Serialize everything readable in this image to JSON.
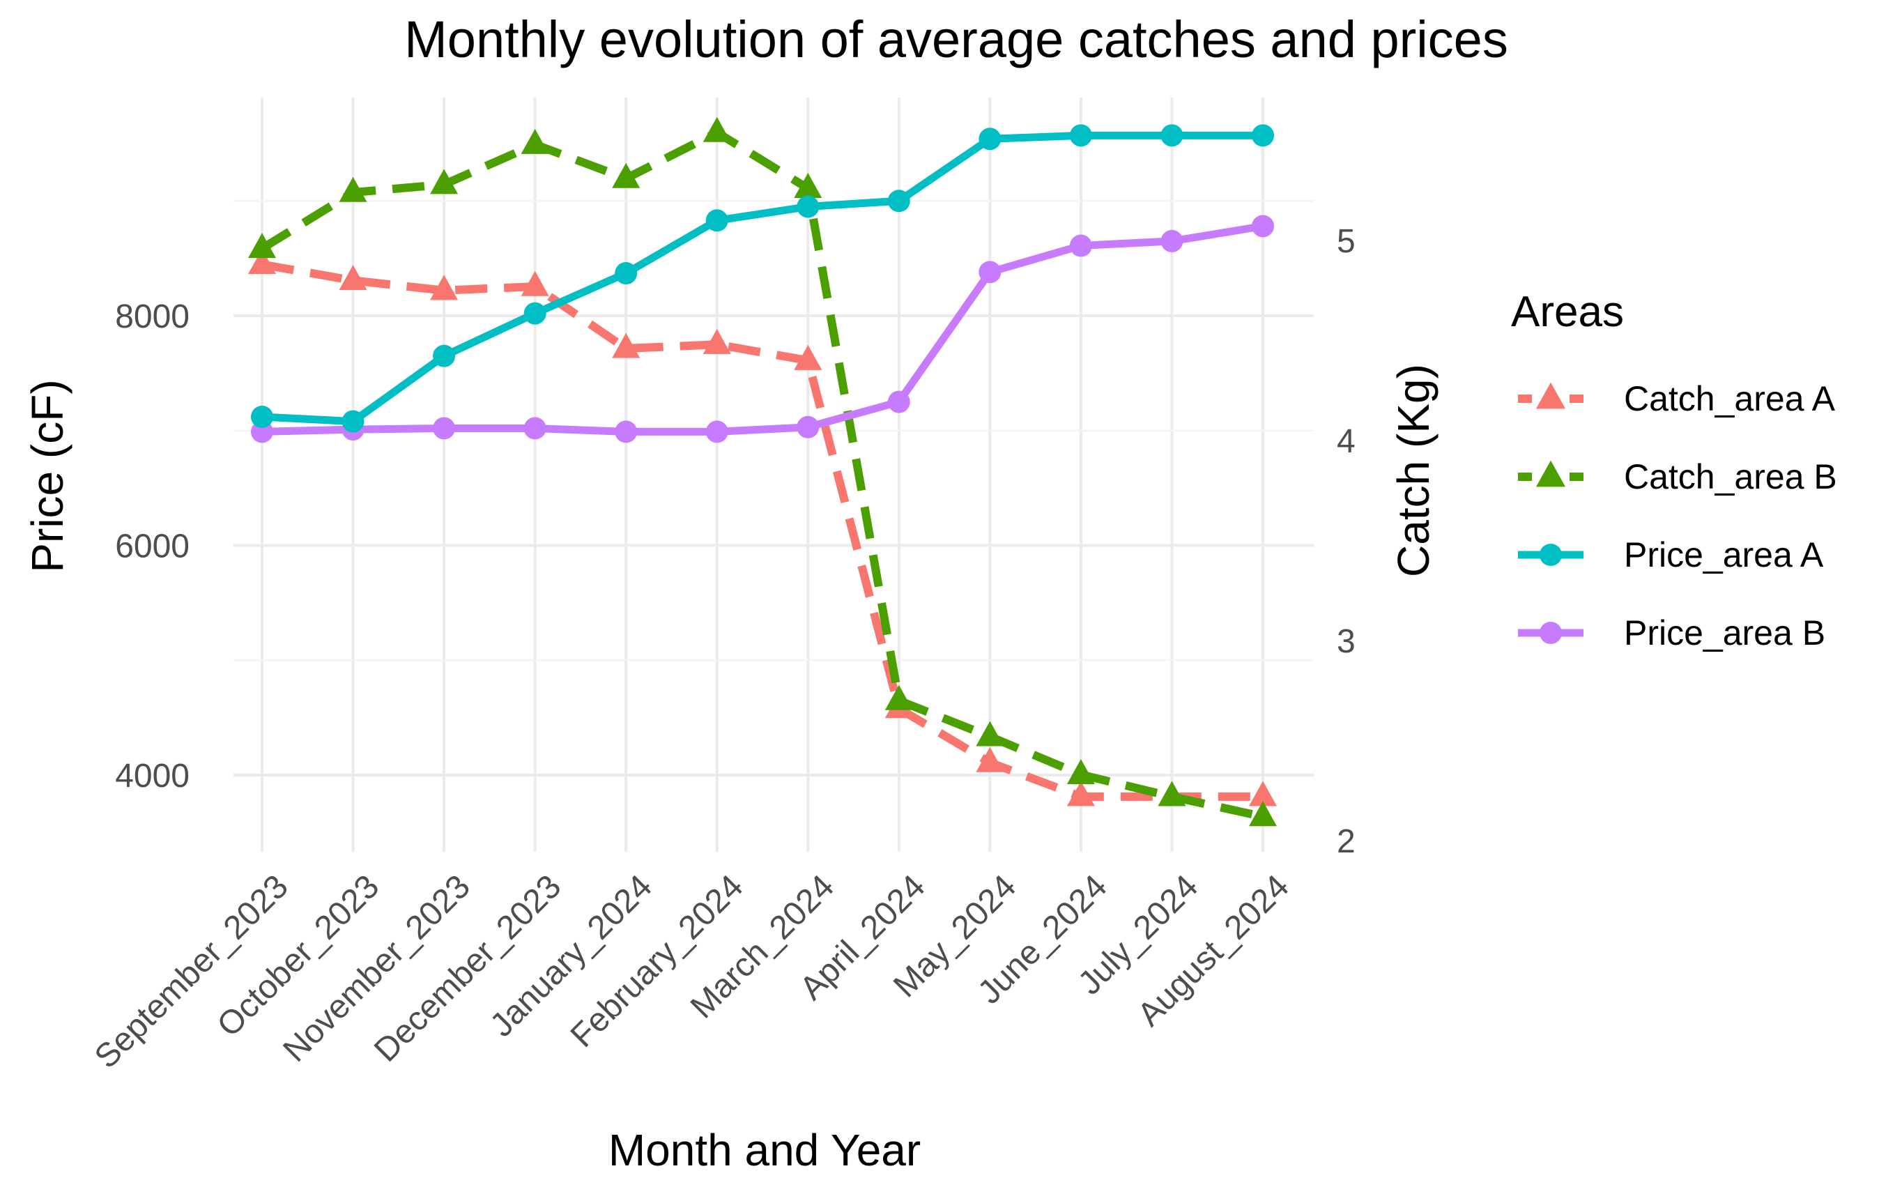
{
  "chart_data": {
    "type": "line",
    "title": "Monthly evolution of average catches and prices",
    "xlabel": "Month and Year",
    "ylabel_left": "Price (cF)",
    "ylabel_right": "Catch (Kg)",
    "categories": [
      "September_2023",
      "October_2023",
      "November_2023",
      "December_2023",
      "January_2024",
      "February_2024",
      "March_2024",
      "April_2024",
      "May_2024",
      "June_2024",
      "July_2024",
      "August_2024"
    ],
    "y_left": {
      "ticks": [
        4000,
        6000,
        8000
      ],
      "range": [
        3300,
        10000
      ]
    },
    "y_right": {
      "ticks": [
        2,
        3,
        4,
        5
      ],
      "range": [
        1.98,
        5.88
      ]
    },
    "grid": true,
    "legend": {
      "title": "Areas",
      "position": "right"
    },
    "series": [
      {
        "name": "Catch_area A",
        "axis": "right",
        "color": "#F8766D",
        "line": "dashed",
        "marker": "triangle",
        "values": [
          4.88,
          4.8,
          4.75,
          4.77,
          4.46,
          4.48,
          4.4,
          2.66,
          2.39,
          2.22,
          2.22,
          2.22
        ]
      },
      {
        "name": "Catch_area B",
        "axis": "right",
        "color": "#4BA000",
        "line": "dashed",
        "marker": "triangle",
        "values": [
          4.96,
          5.24,
          5.28,
          5.48,
          5.31,
          5.54,
          5.26,
          2.7,
          2.52,
          2.33,
          2.22,
          2.12
        ]
      },
      {
        "name": "Price_area A",
        "axis": "left",
        "color": "#00BFC4",
        "line": "solid",
        "marker": "circle",
        "values": [
          7120,
          7080,
          7650,
          8020,
          8370,
          8830,
          8950,
          9000,
          9540,
          9570,
          9570,
          9570
        ]
      },
      {
        "name": "Price_area B",
        "axis": "left",
        "color": "#C77CFF",
        "line": "solid",
        "marker": "circle",
        "values": [
          6990,
          7010,
          7020,
          7020,
          6990,
          6990,
          7030,
          7250,
          8380,
          8610,
          8650,
          8780
        ]
      }
    ]
  }
}
